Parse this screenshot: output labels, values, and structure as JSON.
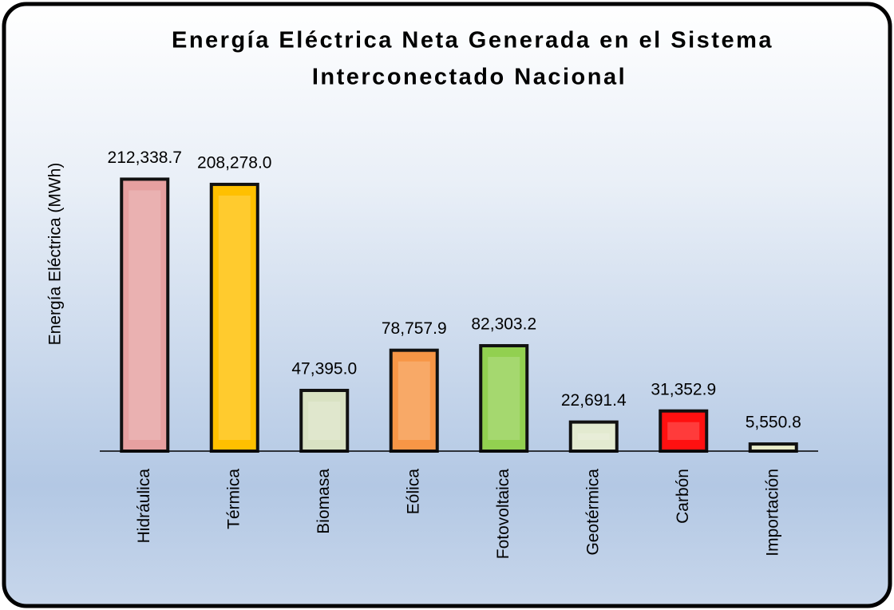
{
  "chart_data": {
    "type": "bar",
    "title": "Energía Eléctrica Neta Generada en el Sistema",
    "subtitle": "Interconectado Nacional",
    "y_label": "Energía Eléctrica (MWh)",
    "categories": [
      "Hidráulica",
      "Térmica",
      "Biomasa",
      "Eólica",
      "Fotovoltaica",
      "Geotérmica",
      "Carbón",
      "Importación"
    ],
    "values": [
      212338.7,
      208278.0,
      47395.0,
      78757.9,
      82303.2,
      22691.4,
      31352.9,
      5550.8
    ],
    "value_labels": [
      "212,338.7",
      "208,278.0",
      "47,395.0",
      "78,757.9",
      "82,303.2",
      "22,691.4",
      "31,352.9",
      "5,550.8"
    ],
    "colors": [
      "#e6a0a0",
      "#ffc000",
      "#d9e2c3",
      "#f79646",
      "#92d050",
      "#e3ead0",
      "#ff1010",
      "#e9ecc9"
    ],
    "ylim": [
      0,
      250000
    ]
  }
}
